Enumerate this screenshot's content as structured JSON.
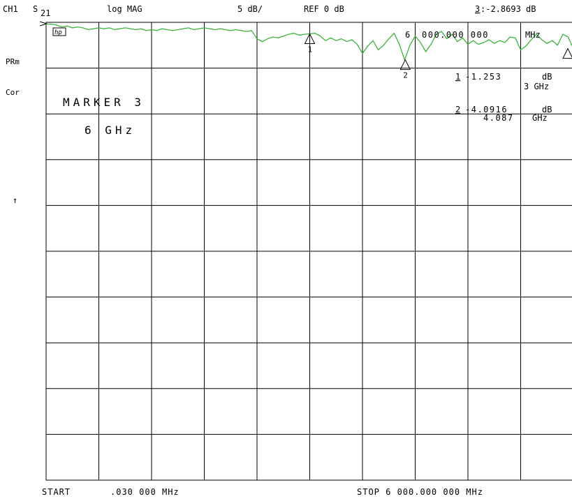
{
  "header": {
    "channel": "CH1",
    "param_s": "S",
    "param_sub": "21",
    "format": "log MAG",
    "scale": "5 dB/",
    "reference": "REF 0 dB",
    "marker_readout_num": "3",
    "marker_readout_value": ":-2.8693 dB"
  },
  "left_annotations": {
    "prm": "PRm",
    "cor": "Cor",
    "arrow": "↑"
  },
  "badge": "hp",
  "marker_readouts": {
    "active_freq_prefix": "6",
    "active_freq": "000.000 000",
    "active_freq_unit": "MHz",
    "m1_num": "1",
    "m1_value": "-1.253",
    "m1_unit": "dB",
    "m1_freq": "3 GHz",
    "m2_num": "2",
    "m2_value": "-4.0916",
    "m2_unit": "dB",
    "m2_freq": "4.087",
    "m2_freq_unit": "GHz"
  },
  "softkey_area": {
    "line1": "MARKER 3",
    "line2": "6 GHz"
  },
  "footer": {
    "start_label": "START",
    "start_value": ".030 000 MHz",
    "stop_label": "STOP 6 000.000 000 MHz"
  },
  "colors": {
    "trace": "#3cb43c",
    "grid": "#000000",
    "background": "#ffffff"
  },
  "chart_data": {
    "type": "line",
    "x_unit": "GHz",
    "y_unit": "dB",
    "xlim": [
      3e-05,
      6.0
    ],
    "ylim": [
      -50,
      0
    ],
    "y_divisions": 10,
    "x_divisions": 10,
    "grid": true,
    "series": [
      {
        "x": [
          3e-05,
          0.06,
          0.12,
          0.18,
          0.24,
          0.3,
          0.36,
          0.42,
          0.48,
          0.54,
          0.6,
          0.66,
          0.72,
          0.78,
          0.84,
          0.9,
          0.96,
          1.02,
          1.08,
          1.14,
          1.2,
          1.26,
          1.32,
          1.38,
          1.44,
          1.5,
          1.56,
          1.62,
          1.68,
          1.74,
          1.8,
          1.86,
          1.92,
          1.98,
          2.04,
          2.1,
          2.16,
          2.22,
          2.28,
          2.34,
          2.4,
          2.46,
          2.52,
          2.58,
          2.64,
          2.7,
          2.76,
          2.82,
          2.88,
          2.94,
          3.0,
          3.06,
          3.12,
          3.18,
          3.24,
          3.3,
          3.36,
          3.42,
          3.48,
          3.54,
          3.6,
          3.66,
          3.72,
          3.78,
          3.84,
          3.9,
          3.96,
          4.02,
          4.08,
          4.14,
          4.2,
          4.26,
          4.32,
          4.38,
          4.44,
          4.5,
          4.56,
          4.62,
          4.68,
          4.74,
          4.8,
          4.86,
          4.92,
          4.98,
          5.04,
          5.1,
          5.16,
          5.22,
          5.28,
          5.34,
          5.4,
          5.46,
          5.52,
          5.58,
          5.64,
          5.7,
          5.76,
          5.82,
          5.88,
          5.94,
          6.0
        ],
        "y": [
          -0.2,
          -0.2,
          -0.3,
          -0.5,
          -0.4,
          -0.6,
          -0.5,
          -0.6,
          -0.8,
          -0.7,
          -0.6,
          -0.7,
          -0.6,
          -0.8,
          -0.7,
          -0.6,
          -0.7,
          -0.8,
          -0.7,
          -0.9,
          -0.8,
          -0.9,
          -0.7,
          -0.8,
          -0.9,
          -0.8,
          -0.7,
          -0.6,
          -0.8,
          -0.7,
          -0.6,
          -0.7,
          -0.8,
          -0.7,
          -0.8,
          -0.9,
          -0.8,
          -0.9,
          -1.0,
          -0.9,
          -1.8,
          -2.1,
          -1.8,
          -1.6,
          -1.7,
          -1.5,
          -1.3,
          -1.2,
          -1.4,
          -1.3,
          -1.25,
          -1.2,
          -1.5,
          -2.0,
          -1.7,
          -2.0,
          -1.8,
          -2.1,
          -1.9,
          -2.4,
          -3.4,
          -2.6,
          -2.0,
          -3.0,
          -2.5,
          -1.8,
          -1.2,
          -2.4,
          -4.1,
          -2.5,
          -1.5,
          -2.2,
          -3.2,
          -2.4,
          -1.3,
          -1.0,
          -1.8,
          -1.3,
          -2.1,
          -1.7,
          -2.4,
          -2.0,
          -2.4,
          -2.2,
          -1.9,
          -2.3,
          -2.0,
          -2.2,
          -1.6,
          -1.7,
          -3.0,
          -2.6,
          -1.9,
          -1.3,
          -1.9,
          -2.3,
          -2.0,
          -2.5,
          -1.3,
          -1.6,
          -2.87
        ]
      }
    ],
    "markers": [
      {
        "id": "1",
        "x": 3.0,
        "y": -1.253
      },
      {
        "id": "2",
        "x": 4.087,
        "y": -4.0916
      },
      {
        "id": "3",
        "x": 6.0,
        "y": -2.8693
      }
    ]
  }
}
